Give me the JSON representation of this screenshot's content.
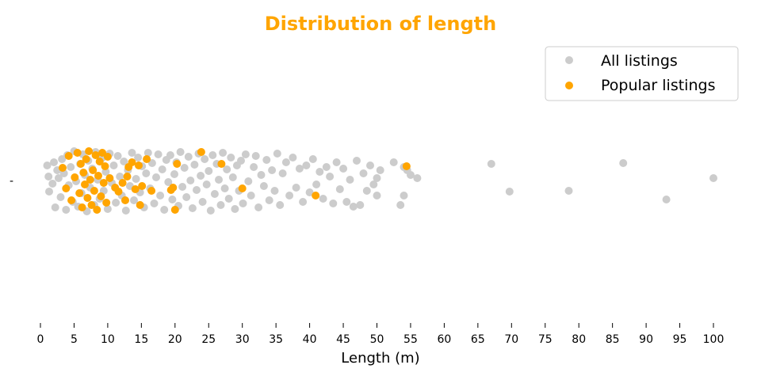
{
  "chart_data": {
    "type": "scatter",
    "title": "Distribution of length",
    "title_color": "#FFA500",
    "xlabel": "Length (m)",
    "ylabel": "",
    "xlim": [
      0,
      100
    ],
    "xticks": [
      0,
      5,
      10,
      15,
      20,
      25,
      30,
      35,
      40,
      45,
      50,
      55,
      60,
      65,
      70,
      75,
      80,
      85,
      90,
      95,
      100
    ],
    "y_category_tick": "-",
    "grid": false,
    "legend": {
      "position": "top-right"
    },
    "series": [
      {
        "name": "All listings",
        "color": "#CCCCCC",
        "points": [
          [
            1,
            0.2
          ],
          [
            1.2,
            0.06
          ],
          [
            1.3,
            -0.13
          ],
          [
            1.8,
            -0.03
          ],
          [
            2,
            0.24
          ],
          [
            2.2,
            -0.33
          ],
          [
            2.5,
            0.14
          ],
          [
            2.7,
            0.04
          ],
          [
            3,
            -0.2
          ],
          [
            3.2,
            0.28
          ],
          [
            3.5,
            0.1
          ],
          [
            3.8,
            -0.36
          ],
          [
            4,
            0.33
          ],
          [
            4.2,
            -0.05
          ],
          [
            4.5,
            0.18
          ],
          [
            4.8,
            -0.26
          ],
          [
            5,
            0.38
          ],
          [
            5.3,
            0.0
          ],
          [
            5.6,
            -0.32
          ],
          [
            5.9,
            0.22
          ],
          [
            6.1,
            -0.15
          ],
          [
            6.3,
            0.34
          ],
          [
            6.6,
            0.08
          ],
          [
            6.9,
            -0.38
          ],
          [
            7.1,
            0.26
          ],
          [
            7.4,
            -0.08
          ],
          [
            7.7,
            0.16
          ],
          [
            8,
            -0.3
          ],
          [
            8.2,
            0.37
          ],
          [
            8.5,
            0.02
          ],
          [
            8.8,
            -0.22
          ],
          [
            9.1,
            0.29
          ],
          [
            9.4,
            -0.12
          ],
          [
            9.7,
            0.12
          ],
          [
            10,
            -0.35
          ],
          [
            10.3,
            0.35
          ],
          [
            10.6,
            -0.02
          ],
          [
            10.9,
            0.2
          ],
          [
            11.2,
            -0.27
          ],
          [
            11.5,
            0.32
          ],
          [
            11.8,
            0.06
          ],
          [
            12.1,
            -0.18
          ],
          [
            12.4,
            0.25
          ],
          [
            12.7,
            -0.37
          ],
          [
            13,
            0.14
          ],
          [
            13.3,
            -0.06
          ],
          [
            13.6,
            0.36
          ],
          [
            13.9,
            -0.24
          ],
          [
            14.2,
            0.03
          ],
          [
            14.5,
            0.3
          ],
          [
            14.8,
            -0.14
          ],
          [
            15.1,
            0.19
          ],
          [
            15.4,
            -0.33
          ],
          [
            15.7,
            0.1
          ],
          [
            16,
            0.36
          ],
          [
            16.3,
            -0.09
          ],
          [
            16.6,
            0.23
          ],
          [
            16.9,
            -0.28
          ],
          [
            17.2,
            0.05
          ],
          [
            17.5,
            0.34
          ],
          [
            17.8,
            -0.18
          ],
          [
            18.1,
            0.15
          ],
          [
            18.4,
            -0.36
          ],
          [
            18.7,
            0.27
          ],
          [
            19,
            -0.01
          ],
          [
            19.3,
            0.33
          ],
          [
            19.6,
            -0.23
          ],
          [
            19.9,
            0.09
          ],
          [
            20.2,
            0.24
          ],
          [
            20.5,
            -0.31
          ],
          [
            20.8,
            0.37
          ],
          [
            21.1,
            -0.07
          ],
          [
            21.4,
            0.17
          ],
          [
            21.7,
            -0.2
          ],
          [
            22,
            0.31
          ],
          [
            22.3,
            0.01
          ],
          [
            22.6,
            -0.34
          ],
          [
            22.9,
            0.21
          ],
          [
            23.2,
            -0.11
          ],
          [
            23.5,
            0.35
          ],
          [
            23.8,
            0.07
          ],
          [
            24.1,
            -0.26
          ],
          [
            24.4,
            0.28
          ],
          [
            24.7,
            -0.04
          ],
          [
            25,
            0.13
          ],
          [
            25.3,
            -0.37
          ],
          [
            25.6,
            0.33
          ],
          [
            25.9,
            -0.16
          ],
          [
            26.2,
            0.22
          ],
          [
            26.5,
            0.02
          ],
          [
            26.8,
            -0.3
          ],
          [
            27.1,
            0.36
          ],
          [
            27.4,
            -0.09
          ],
          [
            27.7,
            0.15
          ],
          [
            28,
            -0.22
          ],
          [
            28.3,
            0.3
          ],
          [
            28.6,
            0.05
          ],
          [
            28.9,
            -0.35
          ],
          [
            29.2,
            0.2
          ],
          [
            29.5,
            -0.12
          ],
          [
            29.8,
            0.26
          ],
          [
            30.1,
            -0.28
          ],
          [
            30.5,
            0.34
          ],
          [
            30.9,
            0.0
          ],
          [
            31.3,
            -0.18
          ],
          [
            31.7,
            0.18
          ],
          [
            32,
            0.32
          ],
          [
            32.4,
            -0.33
          ],
          [
            32.8,
            0.08
          ],
          [
            33.2,
            -0.06
          ],
          [
            33.6,
            0.27
          ],
          [
            34,
            -0.24
          ],
          [
            34.4,
            0.14
          ],
          [
            34.8,
            -0.12
          ],
          [
            35.2,
            0.35
          ],
          [
            35.6,
            -0.3
          ],
          [
            36,
            0.1
          ],
          [
            36.5,
            0.24
          ],
          [
            37,
            -0.18
          ],
          [
            37.5,
            0.3
          ],
          [
            38,
            -0.08
          ],
          [
            38.5,
            0.16
          ],
          [
            39,
            -0.26
          ],
          [
            39.5,
            0.2
          ],
          [
            40,
            -0.14
          ],
          [
            40.5,
            0.28
          ],
          [
            41,
            -0.04
          ],
          [
            41.5,
            0.12
          ],
          [
            42,
            -0.22
          ],
          [
            42.5,
            0.18
          ],
          [
            43,
            0.06
          ],
          [
            43.5,
            -0.28
          ],
          [
            44,
            0.24
          ],
          [
            44.5,
            -0.1
          ],
          [
            45,
            0.16
          ],
          [
            45.5,
            -0.26
          ],
          [
            46,
            0.02
          ],
          [
            46.5,
            -0.32
          ],
          [
            47,
            0.26
          ],
          [
            47.5,
            -0.3
          ],
          [
            48,
            0.1
          ],
          [
            48.5,
            -0.12
          ],
          [
            49,
            0.2
          ],
          [
            49.5,
            -0.04
          ],
          [
            50,
            0.04
          ],
          [
            50,
            -0.18
          ],
          [
            50.5,
            0.14
          ],
          [
            52.5,
            0.24
          ],
          [
            53.5,
            -0.3
          ],
          [
            54,
            -0.18
          ],
          [
            54,
            0.18
          ],
          [
            54.5,
            0.14
          ],
          [
            55,
            0.08
          ],
          [
            56,
            0.04
          ],
          [
            67,
            0.22
          ],
          [
            69.7,
            -0.13
          ],
          [
            78.5,
            -0.12
          ],
          [
            86.6,
            0.23
          ],
          [
            93,
            -0.23
          ],
          [
            100,
            0.04
          ]
        ]
      },
      {
        "name": "Popular listings",
        "color": "#FFA500",
        "points": [
          [
            3.3,
            0.17
          ],
          [
            3.8,
            -0.09
          ],
          [
            4.2,
            0.32
          ],
          [
            4.6,
            -0.24
          ],
          [
            5.1,
            0.05
          ],
          [
            5.5,
            0.36
          ],
          [
            5.8,
            -0.15
          ],
          [
            6,
            0.22
          ],
          [
            6.2,
            -0.33
          ],
          [
            6.4,
            0.11
          ],
          [
            6.6,
            -0.04
          ],
          [
            6.8,
            0.28
          ],
          [
            7,
            -0.21
          ],
          [
            7.2,
            0.38
          ],
          [
            7.4,
            0.02
          ],
          [
            7.6,
            -0.3
          ],
          [
            7.8,
            0.14
          ],
          [
            8,
            -0.12
          ],
          [
            8.2,
            0.33
          ],
          [
            8.4,
            -0.36
          ],
          [
            8.6,
            0.07
          ],
          [
            8.8,
            0.25
          ],
          [
            9,
            -0.19
          ],
          [
            9.2,
            0.36
          ],
          [
            9.4,
            -0.02
          ],
          [
            9.6,
            0.19
          ],
          [
            9.8,
            -0.27
          ],
          [
            10,
            0.31
          ],
          [
            10.3,
            0.04
          ],
          [
            11.1,
            -0.08
          ],
          [
            11.6,
            -0.13
          ],
          [
            12.2,
            -0.02
          ],
          [
            12.6,
            -0.24
          ],
          [
            12.9,
            0.06
          ],
          [
            13.1,
            0.18
          ],
          [
            13.6,
            0.24
          ],
          [
            14.1,
            -0.1
          ],
          [
            14.6,
            0.2
          ],
          [
            14.8,
            -0.3
          ],
          [
            15.1,
            -0.06
          ],
          [
            15.8,
            0.28
          ],
          [
            16.5,
            -0.12
          ],
          [
            19.4,
            -0.11
          ],
          [
            19.7,
            -0.08
          ],
          [
            20,
            -0.36
          ],
          [
            20.3,
            0.22
          ],
          [
            23.9,
            0.37
          ],
          [
            26.9,
            0.22
          ],
          [
            30,
            -0.09
          ],
          [
            40.9,
            -0.18
          ],
          [
            54.4,
            0.19
          ]
        ]
      }
    ]
  }
}
